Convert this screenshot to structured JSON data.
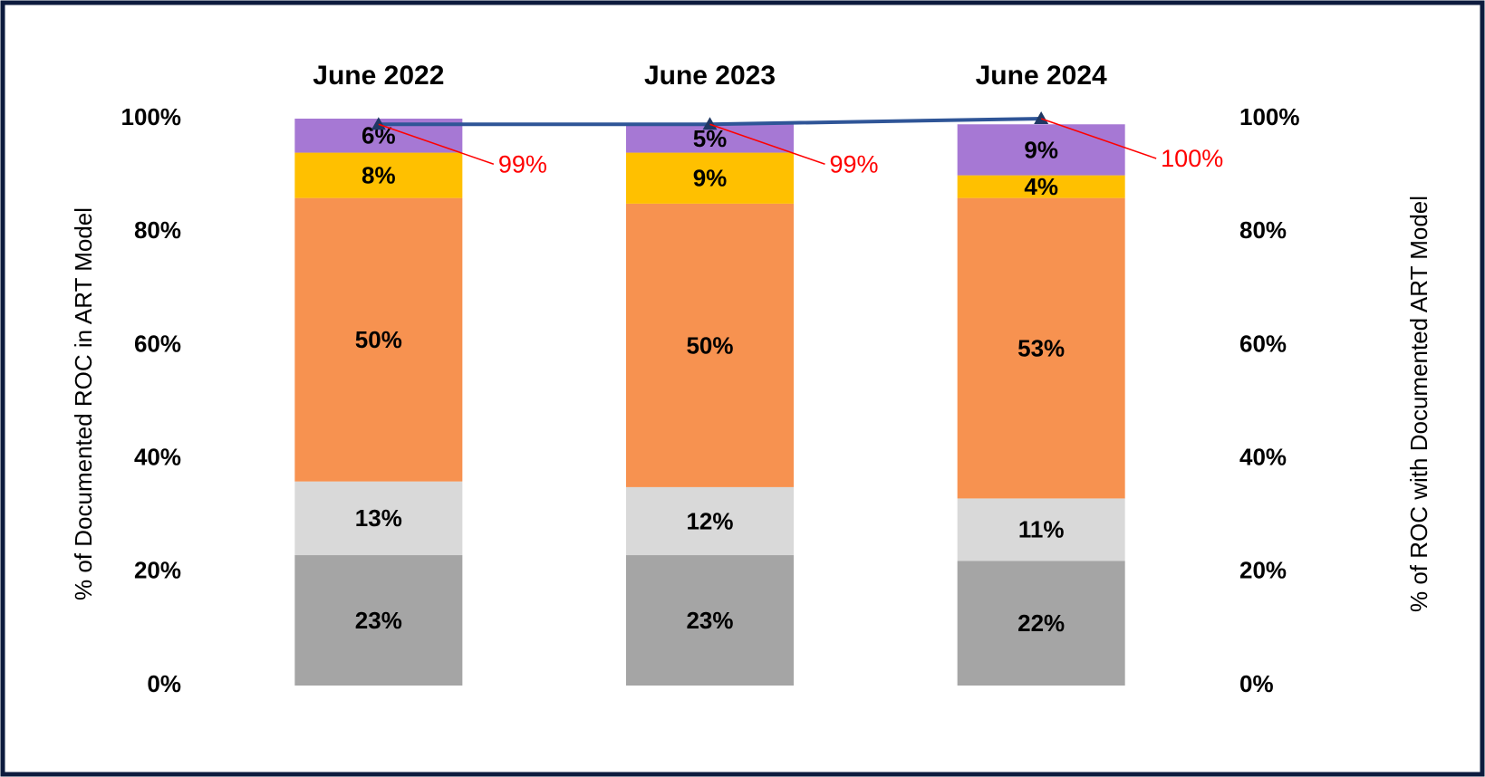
{
  "chart_data": {
    "type": "stacked_bar",
    "categories": [
      "June 2022",
      "June 2023",
      "June 2024"
    ],
    "series": [
      {
        "color": "#a5a5a5",
        "values": [
          23,
          23,
          22
        ],
        "value_labels": [
          "23%",
          "23%",
          "22%"
        ]
      },
      {
        "color": "#d9d9d9",
        "values": [
          13,
          12,
          11
        ],
        "value_labels": [
          "13%",
          "12%",
          "11%"
        ]
      },
      {
        "color": "#f79250",
        "values": [
          50,
          50,
          53
        ],
        "value_labels": [
          "50%",
          "50%",
          "53%"
        ]
      },
      {
        "color": "#ffc000",
        "values": [
          8,
          9,
          4
        ],
        "value_labels": [
          "8%",
          "9%",
          "4%"
        ]
      },
      {
        "color": "#a678d4",
        "values": [
          6,
          5,
          9
        ],
        "value_labels": [
          "6%",
          "5%",
          "9%"
        ]
      },
      {
        "type": "line",
        "axis": "y2",
        "color": "#2f5597",
        "marker_color": "#1f3864",
        "label_color": "#ff0000",
        "values": [
          99,
          99,
          100
        ],
        "value_labels": [
          "99%",
          "99%",
          "100%"
        ]
      }
    ],
    "ylabel": "% of Documented ROC in ART Model",
    "y2label": "% of ROC with Documented ART Model",
    "ylim": [
      0,
      100
    ],
    "yticks": [
      {
        "value": 0,
        "label": "0%"
      },
      {
        "value": 20,
        "label": "20%"
      },
      {
        "value": 40,
        "label": "40%"
      },
      {
        "value": 60,
        "label": "60%"
      },
      {
        "value": 80,
        "label": "80%"
      },
      {
        "value": 100,
        "label": "100%"
      }
    ],
    "y2lim": [
      0,
      100
    ],
    "y2ticks": [
      {
        "value": 0,
        "label": "0%"
      },
      {
        "value": 20,
        "label": "20%"
      },
      {
        "value": 40,
        "label": "40%"
      },
      {
        "value": 60,
        "label": "60%"
      },
      {
        "value": 80,
        "label": "80%"
      },
      {
        "value": 100,
        "label": "100%"
      }
    ],
    "grid": false
  }
}
